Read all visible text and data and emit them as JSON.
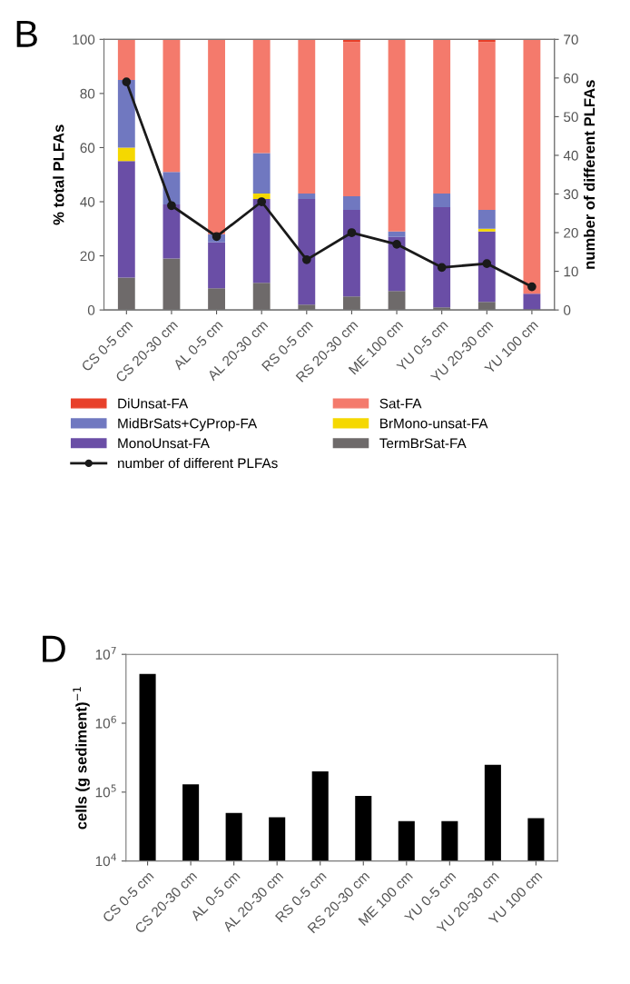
{
  "chart_data": [
    {
      "type": "bar",
      "title": "B",
      "stacked": true,
      "ylabel": "% total PLFAs",
      "y2label": "number of different PLFAs",
      "categories": [
        "CS 0-5 cm",
        "CS 20-30 cm",
        "AL 0-5 cm",
        "AL 20-30 cm",
        "RS 0-5 cm",
        "RS 20-30 cm",
        "ME 100 cm",
        "YU 0-5 cm",
        "YU 20-30 cm",
        "YU 100 cm"
      ],
      "series": [
        {
          "name": "TermBrSat-FA",
          "color": "#6e6a6a",
          "values": [
            12,
            19,
            8,
            10,
            2,
            5,
            7,
            1,
            3,
            0
          ]
        },
        {
          "name": "MonoUnsat-FA",
          "color": "#6a4ea6",
          "values": [
            43,
            20,
            17,
            31,
            39,
            32,
            20,
            37,
            26,
            6
          ]
        },
        {
          "name": "BrMono-unsat-FA",
          "color": "#f5d800",
          "values": [
            5,
            0,
            0,
            2,
            0,
            0,
            0,
            0,
            1,
            0
          ]
        },
        {
          "name": "MidBrSats+CyProp-FA",
          "color": "#7078c0",
          "values": [
            25,
            12,
            3,
            15,
            2,
            5,
            2,
            5,
            7,
            0
          ]
        },
        {
          "name": "Sat-FA",
          "color": "#f47a6c",
          "values": [
            15,
            49,
            72,
            42,
            57,
            57,
            71,
            57,
            62,
            94
          ]
        },
        {
          "name": "DiUnsat-FA",
          "color": "#e8402a",
          "values": [
            0,
            0,
            0,
            0,
            0,
            1,
            0,
            0,
            1,
            0
          ]
        },
        {
          "name": "number of different PLFAs",
          "type": "line",
          "axis": "y2",
          "color": "#1a1a1a",
          "marker": "circle",
          "values": [
            59,
            27,
            19,
            28,
            13,
            20,
            17,
            11,
            12,
            6
          ]
        }
      ],
      "ylim": [
        0,
        100
      ],
      "yticks": [
        0,
        20,
        40,
        60,
        80,
        100
      ],
      "y2lim": [
        0,
        70
      ],
      "y2ticks": [
        0,
        10,
        20,
        30,
        40,
        50,
        60,
        70
      ],
      "legend": "bottom",
      "grid": false
    },
    {
      "type": "bar",
      "title": "D",
      "ylabel": "cells (g sediment)$^{−1}$",
      "log": true,
      "categories": [
        "CS 0-5 cm",
        "CS 20-30 cm",
        "AL 0-5 cm",
        "AL 20-30 cm",
        "RS 0-5 cm",
        "RS 20-30 cm",
        "ME 100 cm",
        "YU 0-5 cm",
        "YU 20-30 cm",
        "YU 100 cm"
      ],
      "values": [
        5200000,
        130000,
        50000,
        43000,
        200000,
        88000,
        38000,
        38000,
        250000,
        42000
      ],
      "color": "#000000",
      "ylim": [
        10000,
        10000000
      ],
      "yticks": [
        {
          "value": 10000,
          "label": "10$^{4}$"
        },
        {
          "value": 100000,
          "label": "10$^{5}$"
        },
        {
          "value": 1000000,
          "label": "10$^{6}$"
        },
        {
          "value": 10000000,
          "label": "10$^{7}$"
        }
      ],
      "grid": false
    }
  ]
}
